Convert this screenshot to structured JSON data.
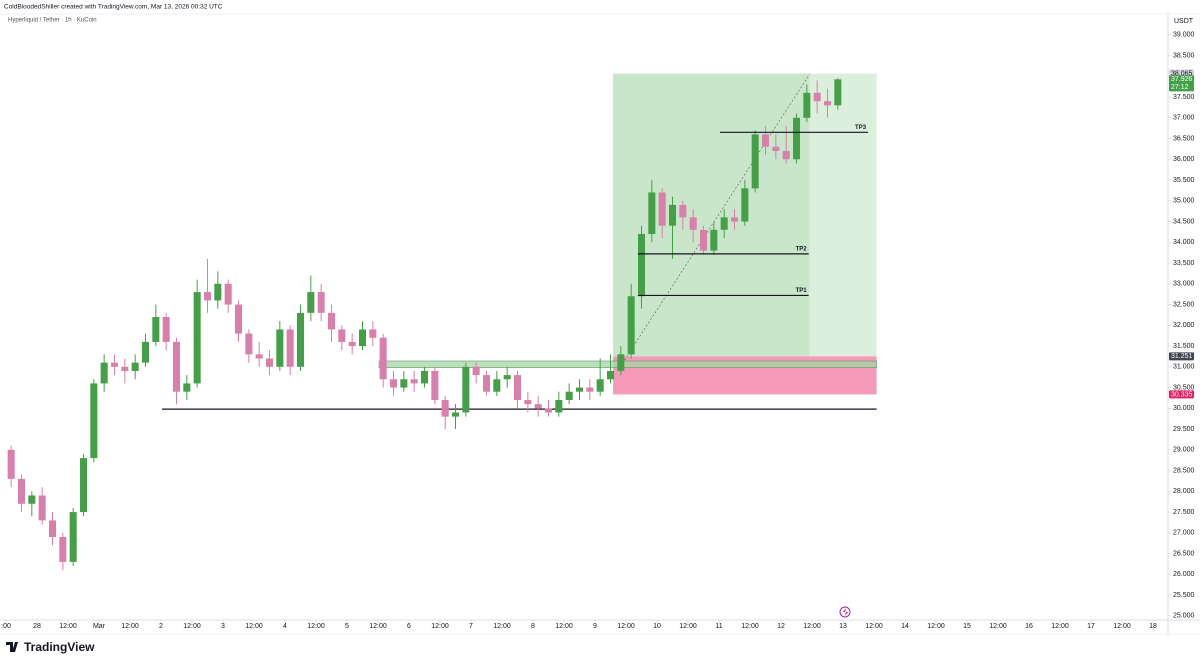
{
  "chart_data": {
    "type": "candlestick",
    "title": "ColdBloodedShiller created with TradingView.com, Mar 13, 2026 00:32 UTC",
    "subtitle": "Hyperliquid / Tether · 1h · KuCoin",
    "y_unit": "USDT",
    "brand": "TradingView",
    "up_color": "#43a047",
    "down_color": "#d97fab",
    "xlim": [
      -14.32,
      437.8
    ],
    "ylim": [
      24.9,
      39.5
    ],
    "xticks": [
      {
        "value": -12,
        "label": ":00"
      },
      {
        "value": 0,
        "label": "28"
      },
      {
        "value": 12,
        "label": "12:00"
      },
      {
        "value": 24,
        "label": "Mar"
      },
      {
        "value": 36,
        "label": "12:00"
      },
      {
        "value": 48,
        "label": "2"
      },
      {
        "value": 60,
        "label": "12:00"
      },
      {
        "value": 72,
        "label": "3"
      },
      {
        "value": 84,
        "label": "12:00"
      },
      {
        "value": 96,
        "label": "4"
      },
      {
        "value": 108,
        "label": "12:00"
      },
      {
        "value": 120,
        "label": "5"
      },
      {
        "value": 132,
        "label": "12:00"
      },
      {
        "value": 144,
        "label": "6"
      },
      {
        "value": 156,
        "label": "12:00"
      },
      {
        "value": 168,
        "label": "7"
      },
      {
        "value": 180,
        "label": "12:00"
      },
      {
        "value": 192,
        "label": "8"
      },
      {
        "value": 204,
        "label": "12:00"
      },
      {
        "value": 216,
        "label": "9"
      },
      {
        "value": 228,
        "label": "12:00"
      },
      {
        "value": 240,
        "label": "10"
      },
      {
        "value": 252,
        "label": "12:00"
      },
      {
        "value": 264,
        "label": "11"
      },
      {
        "value": 276,
        "label": "12:00"
      },
      {
        "value": 288,
        "label": "12"
      },
      {
        "value": 300,
        "label": "12:00"
      },
      {
        "value": 312,
        "label": "13"
      },
      {
        "value": 324,
        "label": "12:00"
      },
      {
        "value": 336,
        "label": "14"
      },
      {
        "value": 348,
        "label": "12:00"
      },
      {
        "value": 360,
        "label": "15"
      },
      {
        "value": 372,
        "label": "12:00"
      },
      {
        "value": 384,
        "label": "16"
      },
      {
        "value": 396,
        "label": "12:00"
      },
      {
        "value": 408,
        "label": "17"
      },
      {
        "value": 420,
        "label": "12:00"
      },
      {
        "value": 432,
        "label": "18"
      }
    ],
    "yticks": [
      {
        "value": 25,
        "label": "25.000"
      },
      {
        "value": 25.5,
        "label": "25.500"
      },
      {
        "value": 26,
        "label": "26.000"
      },
      {
        "value": 26.5,
        "label": "26.500"
      },
      {
        "value": 27,
        "label": "27.000"
      },
      {
        "value": 27.5,
        "label": "27.500"
      },
      {
        "value": 28,
        "label": "28.000"
      },
      {
        "value": 28.5,
        "label": "28.500"
      },
      {
        "value": 29,
        "label": "29.000"
      },
      {
        "value": 29.5,
        "label": "29.500"
      },
      {
        "value": 30,
        "label": "30.000"
      },
      {
        "value": 30.5,
        "label": "30.500"
      },
      {
        "value": 31,
        "label": "31.000"
      },
      {
        "value": 31.5,
        "label": "31.500"
      },
      {
        "value": 32,
        "label": "32.000"
      },
      {
        "value": 32.5,
        "label": "32.500"
      },
      {
        "value": 33,
        "label": "33.000"
      },
      {
        "value": 33.5,
        "label": "33.500"
      },
      {
        "value": 34,
        "label": "34.000"
      },
      {
        "value": 34.5,
        "label": "34.500"
      },
      {
        "value": 35,
        "label": "35.000"
      },
      {
        "value": 35.5,
        "label": "35.500"
      },
      {
        "value": 36,
        "label": "36.000"
      },
      {
        "value": 36.5,
        "label": "36.500"
      },
      {
        "value": 37,
        "label": "37.000"
      },
      {
        "value": 37.5,
        "label": "37.500"
      },
      {
        "value": 38,
        "label": "38.000"
      },
      {
        "value": 38.5,
        "label": "38.500"
      },
      {
        "value": 39,
        "label": "39.000"
      }
    ],
    "x": [
      -10,
      -6,
      -2,
      2,
      6,
      10,
      14,
      18,
      22,
      26,
      30,
      34,
      38,
      42,
      46,
      50,
      54,
      58,
      62,
      66,
      70,
      74,
      78,
      82,
      86,
      90,
      94,
      98,
      102,
      106,
      110,
      114,
      118,
      122,
      126,
      130,
      134,
      138,
      142,
      146,
      150,
      154,
      158,
      162,
      166,
      170,
      174,
      178,
      182,
      186,
      190,
      194,
      198,
      202,
      206,
      210,
      214,
      218,
      222,
      226,
      230,
      234,
      238,
      242,
      246,
      250,
      254,
      258,
      262,
      266,
      270,
      274,
      278,
      282,
      286,
      290,
      294,
      298,
      302,
      306,
      310
    ],
    "open": [
      29.0,
      28.3,
      27.7,
      27.9,
      27.3,
      26.9,
      26.3,
      27.5,
      28.8,
      30.6,
      31.1,
      31.0,
      30.9,
      31.1,
      31.6,
      32.2,
      31.6,
      30.4,
      30.6,
      32.8,
      32.6,
      33.0,
      32.5,
      31.8,
      31.3,
      31.2,
      31.0,
      31.9,
      31.0,
      32.3,
      32.8,
      32.3,
      31.9,
      31.6,
      31.5,
      31.9,
      31.7,
      30.7,
      30.5,
      30.7,
      30.6,
      30.9,
      30.2,
      29.8,
      29.9,
      31.0,
      30.8,
      30.4,
      30.7,
      30.8,
      30.2,
      30.1,
      30.0,
      29.9,
      30.2,
      30.4,
      30.5,
      30.4,
      30.7,
      30.9,
      31.3,
      32.7,
      34.2,
      35.2,
      34.4,
      34.9,
      34.6,
      34.3,
      33.8,
      34.3,
      34.6,
      34.5,
      35.3,
      36.6,
      36.3,
      36.2,
      36.0,
      37.0,
      37.6,
      37.4,
      37.3
    ],
    "high": [
      29.1,
      28.4,
      28.0,
      28.1,
      27.5,
      27.0,
      27.6,
      28.9,
      30.7,
      31.3,
      31.3,
      31.2,
      31.3,
      31.8,
      32.5,
      32.3,
      31.7,
      30.8,
      33.1,
      33.6,
      33.3,
      33.1,
      32.6,
      31.9,
      31.6,
      31.4,
      32.1,
      32.0,
      32.5,
      33.2,
      33.0,
      32.5,
      32.0,
      31.8,
      32.1,
      32.1,
      31.8,
      30.9,
      30.9,
      30.9,
      31.0,
      31.0,
      30.3,
      30.1,
      31.1,
      31.1,
      30.9,
      30.9,
      31.0,
      30.9,
      30.4,
      30.3,
      30.2,
      30.4,
      30.6,
      30.7,
      30.7,
      31.2,
      31.3,
      31.5,
      33.0,
      34.4,
      35.5,
      35.3,
      35.1,
      35.0,
      34.8,
      34.4,
      34.5,
      34.8,
      34.8,
      35.5,
      36.7,
      36.8,
      36.6,
      36.8,
      37.1,
      37.8,
      37.9,
      37.7,
      37.95
    ],
    "low": [
      28.1,
      27.5,
      27.4,
      27.2,
      26.7,
      26.1,
      26.2,
      27.4,
      28.7,
      30.4,
      30.8,
      30.6,
      30.7,
      31.0,
      31.5,
      31.4,
      30.1,
      30.2,
      30.5,
      32.3,
      32.4,
      32.3,
      31.6,
      31.1,
      31.0,
      30.8,
      30.9,
      30.8,
      30.9,
      32.1,
      32.1,
      31.6,
      31.4,
      31.3,
      31.4,
      31.5,
      30.5,
      30.3,
      30.4,
      30.4,
      30.5,
      30.1,
      29.5,
      29.5,
      29.8,
      30.6,
      30.3,
      30.3,
      30.5,
      30.0,
      29.9,
      29.8,
      29.8,
      29.8,
      30.1,
      30.2,
      30.2,
      30.3,
      30.6,
      30.8,
      31.2,
      32.4,
      34.0,
      34.1,
      33.6,
      34.3,
      34.0,
      33.7,
      33.7,
      34.1,
      34.3,
      34.4,
      35.2,
      36.1,
      36.0,
      35.9,
      35.9,
      36.9,
      37.1,
      37.0,
      37.2
    ],
    "close": [
      28.3,
      27.7,
      27.9,
      27.3,
      26.9,
      26.3,
      27.5,
      28.8,
      30.6,
      31.1,
      31.0,
      30.9,
      31.1,
      31.6,
      32.2,
      31.6,
      30.4,
      30.6,
      32.8,
      32.6,
      33.0,
      32.5,
      31.8,
      31.3,
      31.2,
      31.0,
      31.9,
      31.0,
      32.3,
      32.8,
      32.3,
      31.9,
      31.6,
      31.5,
      31.9,
      31.7,
      30.7,
      30.5,
      30.7,
      30.6,
      30.9,
      30.2,
      29.8,
      29.9,
      31.0,
      30.8,
      30.4,
      30.7,
      30.8,
      30.2,
      30.1,
      30.0,
      29.9,
      30.2,
      30.4,
      30.5,
      30.4,
      30.7,
      30.9,
      31.3,
      32.7,
      34.2,
      35.2,
      34.4,
      34.9,
      34.6,
      34.3,
      33.8,
      34.3,
      34.6,
      34.5,
      35.3,
      36.6,
      36.3,
      36.2,
      36.0,
      37.0,
      37.6,
      37.4,
      37.3,
      37.926
    ],
    "last": {
      "value": 37.926,
      "label": "37.926",
      "countdown": "27:12",
      "color": "#43a047"
    },
    "position": {
      "x": [
        223,
        325
      ],
      "split": 299,
      "target": 38.065,
      "entry": 31.251,
      "stop": 30.335,
      "value_labels": [
        "38.065",
        "31.251",
        "30.335"
      ],
      "label_colors": [
        "#d1d4dc",
        "#434651",
        "#e91e63"
      ],
      "profit_color": "#a5d6a7",
      "stop_color": "#f48fb1"
    },
    "demand_zone": {
      "x": [
        132.4,
        325
      ],
      "range": [
        30.98,
        31.14
      ],
      "color": "#a5d6a7"
    },
    "support": {
      "value": 29.98,
      "x": [
        48.4,
        325
      ]
    },
    "tp_lines": [
      {
        "label": "TP1",
        "value": 32.72,
        "x": [
          232.6,
          298.7
        ]
      },
      {
        "label": "TP2",
        "value": 33.72,
        "x": [
          232.6,
          298.7
        ]
      },
      {
        "label": "TP3",
        "value": 36.65,
        "x": [
          264.4,
          321.7
        ]
      }
    ],
    "trend": {
      "x": [
        225.7,
        299.2
      ],
      "y": [
        31.0,
        38.06
      ]
    }
  }
}
